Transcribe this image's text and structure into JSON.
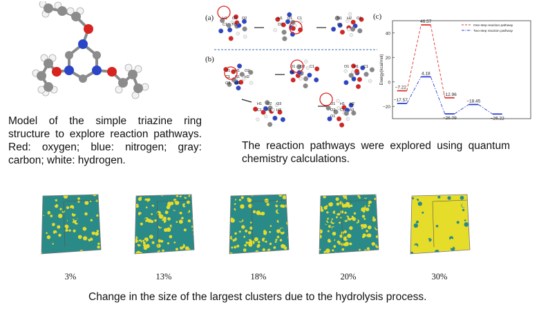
{
  "captions": {
    "molecule": "Model of the simple triazine ring structure to explore reaction pathways. Red: oxygen; blue: nitrogen; gray: carbon; white: hydrogen.",
    "pathways": "The reaction pathways were explored using quantum chemistry calculations.",
    "clusters": "Change in the size of the largest clusters due to the hydrolysis process."
  },
  "panel_labels": {
    "a": "(a)",
    "b": "(b)",
    "c": "(c)"
  },
  "atom_labels": {
    "a1": [
      "H1",
      "O1",
      "O2",
      "C1",
      "N1",
      "H1",
      "O1",
      "C1",
      "O2",
      "N1",
      "H2",
      "O1",
      "C1"
    ],
    "b1": [
      "O1",
      "H1",
      "O2",
      "C1",
      "N1",
      "H2",
      "O3",
      "H3",
      "O1",
      "O2",
      "C1",
      "N1",
      "O1",
      "H1",
      "C1"
    ],
    "b2": [
      "H1",
      "O2",
      "O3",
      "C1",
      "N1",
      "H3",
      "O1",
      "H1",
      "H2",
      "O2",
      "C1",
      "N1",
      "O1"
    ]
  },
  "cubes": {
    "labels": [
      "3%",
      "13%",
      "18%",
      "20%",
      "30%"
    ],
    "yellow_fraction": [
      0.25,
      0.4,
      0.45,
      0.55,
      0.85
    ],
    "colors": {
      "yellow": "#e6dc2a",
      "teal": "#2a8a88"
    }
  },
  "chart_data": {
    "type": "line",
    "title": "",
    "xlabel": "",
    "ylabel": "Energy(kcal/mol)",
    "ylim": [
      -30,
      50
    ],
    "yticks": [
      -20,
      0,
      20,
      40
    ],
    "x": [
      0,
      1,
      2,
      3,
      4,
      5
    ],
    "series": [
      {
        "name": "One-step reaction pathway",
        "color": "#e0302a",
        "style": "dashed",
        "points": [
          [
            0,
            -7.22
          ],
          [
            1,
            46.57
          ],
          [
            2,
            -12.96
          ]
        ],
        "labels": [
          "−7.22",
          "46.57",
          "−12.96"
        ]
      },
      {
        "name": "Two-step reaction pathway",
        "color": "#2a3fd0",
        "style": "dashdot",
        "points": [
          [
            0,
            -17.57
          ],
          [
            1,
            4.18
          ],
          [
            2,
            -26.09
          ],
          [
            3,
            -18.45
          ],
          [
            4,
            -26.22
          ]
        ],
        "labels": [
          "−17.57",
          "4.18",
          "−26.09",
          "−18.45",
          "−26.22"
        ]
      }
    ],
    "legend_position": "top-right"
  }
}
